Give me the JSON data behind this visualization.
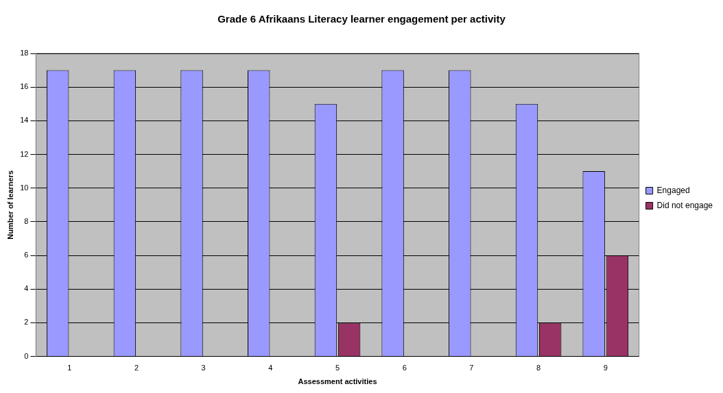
{
  "chart_data": {
    "type": "bar",
    "title": "Grade 6 Afrikaans Literacy learner engagement per activity",
    "xlabel": "Assessment activities",
    "ylabel": "Number of learners",
    "categories": [
      "1",
      "2",
      "3",
      "4",
      "5",
      "6",
      "7",
      "8",
      "9"
    ],
    "series": [
      {
        "name": "Engaged",
        "color": "#9999ff",
        "values": [
          17,
          17,
          17,
          17,
          15,
          17,
          17,
          15,
          11
        ]
      },
      {
        "name": "Did not engage",
        "color": "#993366",
        "values": [
          0,
          0,
          0,
          0,
          2,
          0,
          0,
          2,
          6
        ]
      }
    ],
    "ylim": [
      0,
      18
    ],
    "yticks": [
      0,
      2,
      4,
      6,
      8,
      10,
      12,
      14,
      16,
      18
    ],
    "grid": "y",
    "legend": "right"
  }
}
